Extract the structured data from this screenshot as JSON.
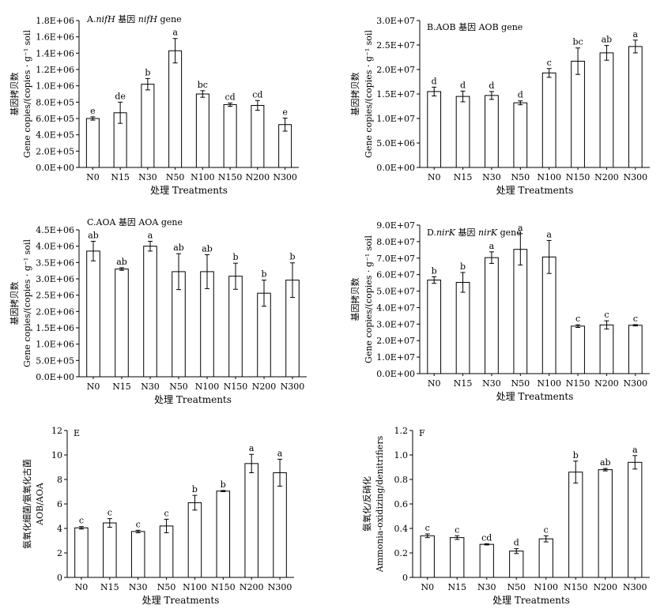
{
  "chart_data": [
    {
      "id": "A",
      "type": "bar",
      "title_prefix": "A.",
      "title_italic": "nifH",
      "title_mid": " 基因 ",
      "title_italic2": "nifH",
      "title_suffix": " gene",
      "categories": [
        "N0",
        "N15",
        "N30",
        "N50",
        "N100",
        "N150",
        "N200",
        "N300"
      ],
      "values": [
        600000,
        670000,
        1020000,
        1430000,
        900000,
        770000,
        760000,
        525000
      ],
      "errors": [
        20000,
        130000,
        70000,
        150000,
        40000,
        20000,
        60000,
        80000
      ],
      "letters": [
        "e",
        "de",
        "b",
        "a",
        "bc",
        "cd",
        "cd",
        "e"
      ],
      "yticks": [
        "0.0E+00",
        "2.0E+05",
        "4.0E+05",
        "6.0E+05",
        "8.0E+05",
        "1.0E+06",
        "1.2E+06",
        "1.4E+06",
        "1.6E+06",
        "1.8E+06"
      ],
      "ylim": [
        0,
        1800000
      ],
      "xlabel": "处理 Treatments",
      "ylabel_cn": "基因拷贝数",
      "ylabel_en": "Gene copies/(copies · g⁻¹ soil"
    },
    {
      "id": "B",
      "type": "bar",
      "title_prefix": "B.AOB 基因 AOB gene",
      "categories": [
        "N0",
        "N15",
        "N30",
        "N50",
        "N100",
        "N150",
        "N200",
        "N300"
      ],
      "values": [
        15500000,
        14500000,
        14700000,
        13200000,
        19300000,
        21700000,
        23400000,
        24700000
      ],
      "errors": [
        900000,
        1100000,
        800000,
        400000,
        900000,
        2700000,
        1500000,
        1300000
      ],
      "letters": [
        "d",
        "d",
        "d",
        "d",
        "c",
        "bc",
        "ab",
        "a"
      ],
      "yticks": [
        "0.0E+00",
        "5.0E+06",
        "1.0E+07",
        "1.5E+07",
        "2.0E+07",
        "2.5E+07",
        "3.0E+07"
      ],
      "ylim": [
        0,
        30000000
      ],
      "xlabel": "处理 Treatments",
      "ylabel_cn": "基因拷贝数",
      "ylabel_en": "Gene copies/(copies · g⁻¹ soil"
    },
    {
      "id": "C",
      "type": "bar",
      "title_prefix": "C.AOA 基因 AOA gene",
      "categories": [
        "N0",
        "N15",
        "N30",
        "N50",
        "N100",
        "N150",
        "N200",
        "N300"
      ],
      "values": [
        3850000,
        3300000,
        4000000,
        3220000,
        3220000,
        3080000,
        2560000,
        2960000
      ],
      "errors": [
        300000,
        40000,
        150000,
        550000,
        520000,
        400000,
        400000,
        530000
      ],
      "letters": [
        "ab",
        "ab",
        "a",
        "ab",
        "ab",
        "b",
        "b",
        "b"
      ],
      "yticks": [
        "0.0E+00",
        "5.0E+05",
        "1.0E+06",
        "1.5E+06",
        "2.0E+06",
        "2.5E+06",
        "3.0E+06",
        "3.5E+06",
        "4.0E+06",
        "4.5E+06"
      ],
      "ylim": [
        0,
        4500000
      ],
      "xlabel": "处理 Treatments",
      "ylabel_cn": "基因拷贝数",
      "ylabel_en": "Gene copies/(copies · g⁻¹ soil"
    },
    {
      "id": "D",
      "type": "bar",
      "title_prefix": "D.",
      "title_italic": "nirK",
      "title_mid": " 基因 ",
      "title_italic2": "nirK",
      "title_suffix": " gene",
      "categories": [
        "N0",
        "N15",
        "N30",
        "N50",
        "N100",
        "N150",
        "N200",
        "N300"
      ],
      "values": [
        56700000,
        55300000,
        70300000,
        75300000,
        70700000,
        28800000,
        29500000,
        29300000
      ],
      "errors": [
        2000000,
        6000000,
        3500000,
        9500000,
        10000000,
        800000,
        2500000,
        400000
      ],
      "letters": [
        "b",
        "b",
        "a",
        "a",
        "a",
        "c",
        "c",
        "c"
      ],
      "yticks": [
        "0.0E+00",
        "1.0E+07",
        "2.0E+07",
        "3.0E+07",
        "4.0E+07",
        "5.0E+07",
        "6.0E+07",
        "7.0E+07",
        "8.0E+07",
        "9.0E+07"
      ],
      "ylim": [
        0,
        90000000
      ],
      "xlabel": "处理 Treatments",
      "ylabel_cn": "基因拷贝数",
      "ylabel_en": "Gene copies/(copies · g⁻¹ soil"
    },
    {
      "id": "E",
      "type": "bar",
      "title_prefix": "E",
      "categories": [
        "N0",
        "N15",
        "N30",
        "N50",
        "N100",
        "N150",
        "N200",
        "N300"
      ],
      "values": [
        4.05,
        4.45,
        3.75,
        4.2,
        6.1,
        7.05,
        9.3,
        8.55
      ],
      "errors": [
        0.1,
        0.35,
        0.1,
        0.55,
        0.6,
        0.05,
        0.75,
        1.1
      ],
      "letters": [
        "c",
        "c",
        "c",
        "c",
        "b",
        "b",
        "a",
        "a"
      ],
      "yticks": [
        "0",
        "2",
        "4",
        "6",
        "8",
        "10",
        "12"
      ],
      "ylim": [
        0,
        12
      ],
      "xlabel": "处理 Treatments",
      "ylabel_cn": "氨氧化细菌/氨氧化古菌",
      "ylabel_en": "AOB/AOA"
    },
    {
      "id": "F",
      "type": "bar",
      "title_prefix": "F",
      "categories": [
        "N0",
        "N15",
        "N30",
        "N50",
        "N100",
        "N150",
        "N200",
        "N300"
      ],
      "values": [
        0.34,
        0.325,
        0.27,
        0.215,
        0.315,
        0.86,
        0.88,
        0.94
      ],
      "errors": [
        0.015,
        0.015,
        0.005,
        0.02,
        0.025,
        0.09,
        0.01,
        0.055
      ],
      "letters": [
        "c",
        "c",
        "cd",
        "d",
        "c",
        "b",
        "ab",
        "a"
      ],
      "yticks": [
        "0",
        "0.2",
        "0.4",
        "0.6",
        "0.8",
        "1.0",
        "1.2"
      ],
      "ylim": [
        0,
        1.2
      ],
      "xlabel": "处理 Treatments",
      "ylabel_cn": "氨氧化/反硝化",
      "ylabel_en": "Ammonia-oxidizing/denitrifiers"
    }
  ]
}
